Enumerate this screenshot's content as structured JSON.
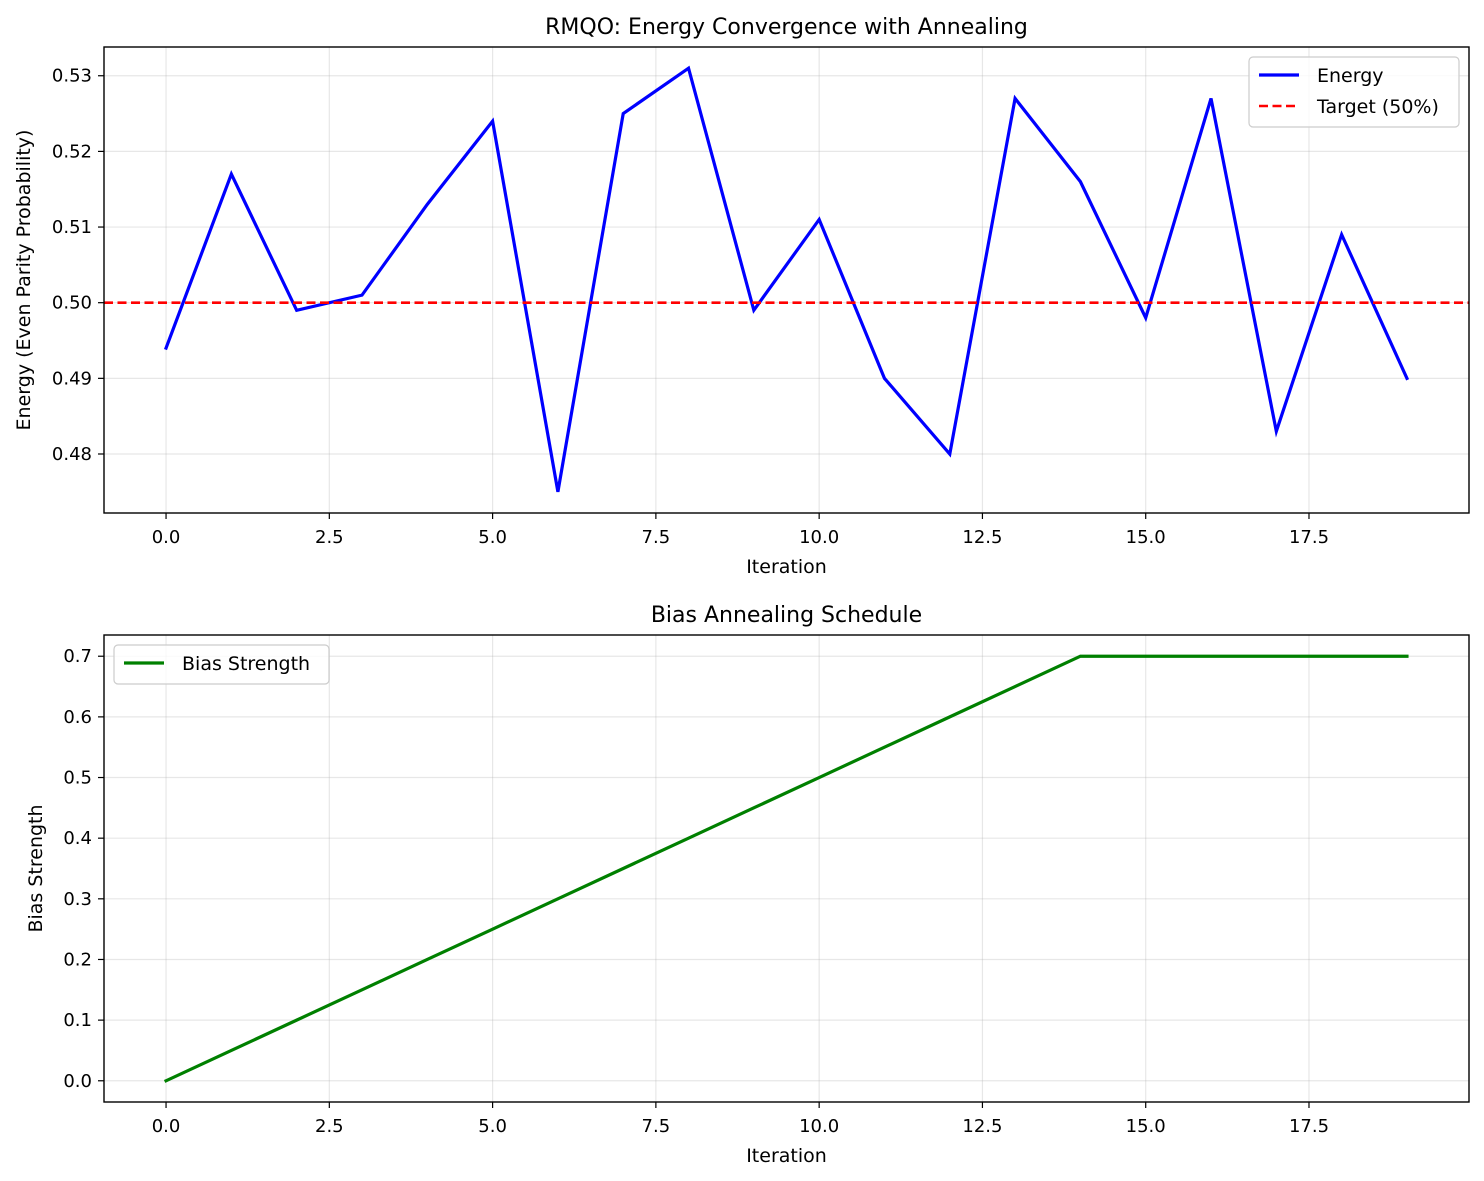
{
  "chart_data": [
    {
      "type": "line",
      "title": "RMQO: Energy Convergence with Annealing",
      "xlabel": "Iteration",
      "ylabel": "Energy (Even Parity Probability)",
      "xlim": [
        -0.95,
        19.95
      ],
      "ylim": [
        0.4722,
        0.5338
      ],
      "xticks": [
        0.0,
        2.5,
        5.0,
        7.5,
        10.0,
        12.5,
        15.0,
        17.5
      ],
      "xtick_labels": [
        "0.0",
        "2.5",
        "5.0",
        "7.5",
        "10.0",
        "12.5",
        "15.0",
        "17.5"
      ],
      "yticks": [
        0.48,
        0.49,
        0.5,
        0.51,
        0.52,
        0.53
      ],
      "ytick_labels": [
        "0.48",
        "0.49",
        "0.50",
        "0.51",
        "0.52",
        "0.53"
      ],
      "grid": true,
      "legend_position": "upper right",
      "series": [
        {
          "name": "Energy",
          "style": "solid",
          "color": "#0000ff",
          "x": [
            0,
            1,
            2,
            3,
            4,
            5,
            6,
            7,
            8,
            9,
            10,
            11,
            12,
            13,
            14,
            15,
            16,
            17,
            18,
            19
          ],
          "values": [
            0.494,
            0.517,
            0.499,
            0.501,
            0.513,
            0.524,
            0.475,
            0.525,
            0.531,
            0.499,
            0.511,
            0.49,
            0.48,
            0.527,
            0.516,
            0.498,
            0.527,
            0.483,
            0.509,
            0.49
          ]
        },
        {
          "name": "Target (50%)",
          "style": "dashed",
          "color": "#ff0000",
          "hline": 0.5
        }
      ]
    },
    {
      "type": "line",
      "title": "Bias Annealing Schedule",
      "xlabel": "Iteration",
      "ylabel": "Bias Strength",
      "xlim": [
        -0.95,
        19.95
      ],
      "ylim": [
        -0.035,
        0.735
      ],
      "xticks": [
        0.0,
        2.5,
        5.0,
        7.5,
        10.0,
        12.5,
        15.0,
        17.5
      ],
      "xtick_labels": [
        "0.0",
        "2.5",
        "5.0",
        "7.5",
        "10.0",
        "12.5",
        "15.0",
        "17.5"
      ],
      "yticks": [
        0.0,
        0.1,
        0.2,
        0.3,
        0.4,
        0.5,
        0.6,
        0.7
      ],
      "ytick_labels": [
        "0.0",
        "0.1",
        "0.2",
        "0.3",
        "0.4",
        "0.5",
        "0.6",
        "0.7"
      ],
      "grid": true,
      "legend_position": "upper left",
      "series": [
        {
          "name": "Bias Strength",
          "style": "solid",
          "color": "#008000",
          "x": [
            0,
            1,
            2,
            3,
            4,
            5,
            6,
            7,
            8,
            9,
            10,
            11,
            12,
            13,
            14,
            15,
            16,
            17,
            18,
            19
          ],
          "values": [
            0.0,
            0.05,
            0.1,
            0.15,
            0.2,
            0.25,
            0.3,
            0.35,
            0.4,
            0.45,
            0.5,
            0.55,
            0.6,
            0.65,
            0.7,
            0.7,
            0.7,
            0.7,
            0.7,
            0.7
          ]
        }
      ]
    }
  ]
}
